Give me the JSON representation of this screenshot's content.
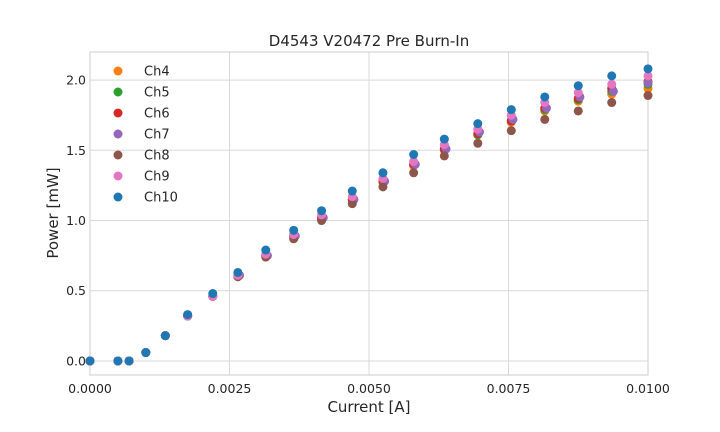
{
  "chart_data": {
    "type": "scatter",
    "title": "D4543 V20472 Pre Burn-In",
    "xlabel": "Current [A]",
    "ylabel": "Power [mW]",
    "xlim": [
      0,
      0.01
    ],
    "ylim": [
      -0.1,
      2.2
    ],
    "xticks": [
      0,
      0.0025,
      0.005,
      0.0075,
      0.01
    ],
    "xtick_labels": [
      "0.0000",
      "0.0025",
      "0.0050",
      "0.0075",
      "0.0100"
    ],
    "yticks": [
      0,
      0.5,
      1.0,
      1.5,
      2.0
    ],
    "ytick_labels": [
      "0.0",
      "0.5",
      "1.0",
      "1.5",
      "2.0"
    ],
    "grid": true,
    "legend_position": "top-left",
    "series": [
      {
        "name": "Ch4",
        "color": "#ff7f0e",
        "x": [
          0,
          0.0005,
          0.0007,
          0.001,
          0.00135,
          0.00175,
          0.0022,
          0.00265,
          0.00315,
          0.00365,
          0.00415,
          0.0047,
          0.00525,
          0.0058,
          0.00635,
          0.00695,
          0.00755,
          0.00815,
          0.00875,
          0.00935,
          0.01
        ],
        "y": [
          0,
          0,
          0,
          0.06,
          0.18,
          0.32,
          0.46,
          0.6,
          0.74,
          0.88,
          1.01,
          1.14,
          1.27,
          1.39,
          1.5,
          1.61,
          1.7,
          1.78,
          1.85,
          1.9,
          1.94
        ]
      },
      {
        "name": "Ch5",
        "color": "#2ca02c",
        "x": [
          0,
          0.0005,
          0.0007,
          0.001,
          0.00135,
          0.00175,
          0.0022,
          0.00265,
          0.00315,
          0.00365,
          0.00415,
          0.0047,
          0.00525,
          0.0058,
          0.00635,
          0.00695,
          0.00755,
          0.00815,
          0.00875,
          0.00935,
          0.01
        ],
        "y": [
          0,
          0,
          0,
          0.06,
          0.18,
          0.32,
          0.46,
          0.61,
          0.75,
          0.89,
          1.02,
          1.15,
          1.28,
          1.4,
          1.51,
          1.61,
          1.71,
          1.79,
          1.86,
          1.92,
          1.97
        ]
      },
      {
        "name": "Ch6",
        "color": "#d62728",
        "x": [
          0,
          0.0005,
          0.0007,
          0.001,
          0.00135,
          0.00175,
          0.0022,
          0.00265,
          0.00315,
          0.00365,
          0.00415,
          0.0047,
          0.00525,
          0.0058,
          0.00635,
          0.00695,
          0.00755,
          0.00815,
          0.00875,
          0.00935,
          0.01
        ],
        "y": [
          0,
          0,
          0,
          0.06,
          0.18,
          0.32,
          0.46,
          0.61,
          0.75,
          0.89,
          1.02,
          1.15,
          1.28,
          1.4,
          1.51,
          1.62,
          1.71,
          1.8,
          1.87,
          1.94,
          1.99
        ]
      },
      {
        "name": "Ch7",
        "color": "#9467bd",
        "x": [
          0,
          0.0005,
          0.0007,
          0.001,
          0.00135,
          0.00175,
          0.0022,
          0.00268,
          0.00318,
          0.00368,
          0.00418,
          0.00473,
          0.00528,
          0.00583,
          0.00638,
          0.00698,
          0.00758,
          0.00818,
          0.00878,
          0.00938,
          0.01
        ],
        "y": [
          0,
          0,
          0,
          0.06,
          0.18,
          0.32,
          0.46,
          0.61,
          0.75,
          0.89,
          1.02,
          1.15,
          1.28,
          1.4,
          1.51,
          1.63,
          1.72,
          1.8,
          1.88,
          1.92,
          1.98
        ]
      },
      {
        "name": "Ch8",
        "color": "#8c564b",
        "x": [
          0,
          0.0005,
          0.0007,
          0.001,
          0.00135,
          0.00175,
          0.0022,
          0.00265,
          0.00315,
          0.00365,
          0.00415,
          0.0047,
          0.00525,
          0.0058,
          0.00635,
          0.00695,
          0.00755,
          0.00815,
          0.00875,
          0.00935,
          0.01
        ],
        "y": [
          0,
          0,
          0,
          0.06,
          0.18,
          0.32,
          0.46,
          0.6,
          0.74,
          0.87,
          1.0,
          1.12,
          1.24,
          1.34,
          1.46,
          1.55,
          1.64,
          1.72,
          1.78,
          1.84,
          1.89
        ]
      },
      {
        "name": "Ch9",
        "color": "#e377c2",
        "x": [
          0,
          0.0005,
          0.0007,
          0.001,
          0.00135,
          0.00175,
          0.0022,
          0.00265,
          0.00315,
          0.00365,
          0.00415,
          0.0047,
          0.00525,
          0.0058,
          0.00635,
          0.00695,
          0.00755,
          0.00815,
          0.00875,
          0.00935,
          0.01
        ],
        "y": [
          0,
          0,
          0,
          0.06,
          0.18,
          0.32,
          0.46,
          0.61,
          0.76,
          0.9,
          1.04,
          1.17,
          1.3,
          1.42,
          1.54,
          1.65,
          1.75,
          1.84,
          1.91,
          1.97,
          2.03
        ]
      },
      {
        "name": "Ch10",
        "color": "#1f77b4",
        "x": [
          0,
          0.0005,
          0.0007,
          0.001,
          0.00135,
          0.00175,
          0.0022,
          0.00265,
          0.00315,
          0.00365,
          0.00415,
          0.0047,
          0.00525,
          0.0058,
          0.00635,
          0.00695,
          0.00755,
          0.00815,
          0.00875,
          0.00935,
          0.01
        ],
        "y": [
          0,
          0,
          0,
          0.06,
          0.18,
          0.33,
          0.48,
          0.63,
          0.79,
          0.93,
          1.07,
          1.21,
          1.34,
          1.47,
          1.58,
          1.69,
          1.79,
          1.88,
          1.96,
          2.03,
          2.08
        ]
      }
    ]
  }
}
